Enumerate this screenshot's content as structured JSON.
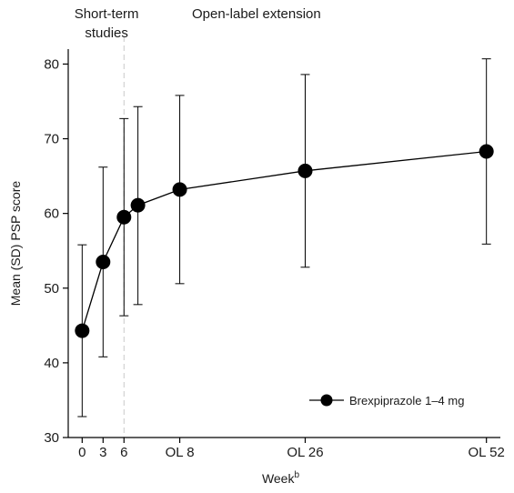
{
  "chart_data": {
    "type": "line",
    "title": "",
    "xlabel": "Week",
    "xlabel_sup": "b",
    "ylabel": "Mean (SD) PSP score",
    "ylim": [
      30,
      82
    ],
    "yticks": [
      30,
      40,
      50,
      60,
      70,
      80
    ],
    "xticks": [
      {
        "label": "0",
        "x": 0
      },
      {
        "label": "3",
        "x": 3
      },
      {
        "label": "6",
        "x": 6
      },
      {
        "label": "OL 8",
        "x": 14
      },
      {
        "label": "OL 26",
        "x": 32
      },
      {
        "label": "OL 52",
        "x": 58
      }
    ],
    "xlim": [
      -2,
      60
    ],
    "phase_divider_x": 6,
    "phase_labels": [
      {
        "text_lines": [
          "Short-term",
          "studies"
        ],
        "center_x": 3.5
      },
      {
        "text_lines": [
          "Open-label extension"
        ],
        "center_x": 25
      }
    ],
    "legend": {
      "placement": "bottom-right",
      "label": "Brexpiprazole 1–4 mg"
    },
    "grid": false,
    "series": [
      {
        "name": "Brexpiprazole 1–4 mg",
        "color": "#000000",
        "points": [
          {
            "x": 0,
            "y": 44.3,
            "lo": 32.8,
            "hi": 55.8
          },
          {
            "x": 3,
            "y": 53.5,
            "lo": 40.8,
            "hi": 66.2
          },
          {
            "x": 6,
            "y": 59.5,
            "lo": 46.3,
            "hi": 72.7
          },
          {
            "x": 8,
            "y": 61.1,
            "lo": 47.8,
            "hi": 74.3
          },
          {
            "x": 14,
            "y": 63.2,
            "lo": 50.6,
            "hi": 75.8
          },
          {
            "x": 32,
            "y": 65.7,
            "lo": 52.8,
            "hi": 78.6
          },
          {
            "x": 58,
            "y": 68.3,
            "lo": 55.9,
            "hi": 80.7
          }
        ]
      }
    ]
  }
}
